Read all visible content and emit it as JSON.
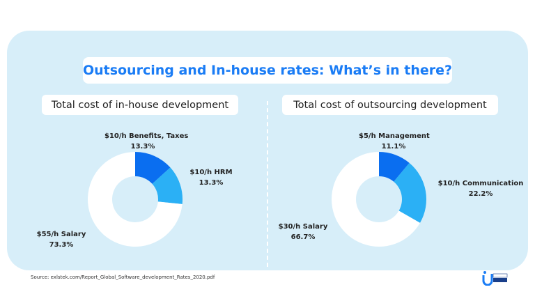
{
  "title": "Outsourcing and In-house rates: What’s in there?",
  "source": "Source: exlstek.com/Report_Global_Software_development_Rates_2020.pdf",
  "colors": {
    "dark": "#0a6ef0",
    "light": "#2bb0f5",
    "white": "#ffffff",
    "title": "#1a7cf5"
  },
  "chart_data": [
    {
      "type": "pie",
      "donut": true,
      "title": "Total cost of in-house development",
      "slices": [
        {
          "label": "$10/h Benefits, Taxes",
          "value": 13.3,
          "pct": "13.3%"
        },
        {
          "label": "$10/h HRM",
          "value": 13.3,
          "pct": "13.3%"
        },
        {
          "label": "$55/h Salary",
          "value": 73.3,
          "pct": "73.3%"
        }
      ]
    },
    {
      "type": "pie",
      "donut": true,
      "title": "Total cost of outsourcing development",
      "slices": [
        {
          "label": "$5/h Management",
          "value": 11.1,
          "pct": "11.1%"
        },
        {
          "label": "$10/h Communication",
          "value": 22.2,
          "pct": "22.2%"
        },
        {
          "label": "$30/h Salary",
          "value": 66.7,
          "pct": "66.7%"
        }
      ]
    }
  ]
}
